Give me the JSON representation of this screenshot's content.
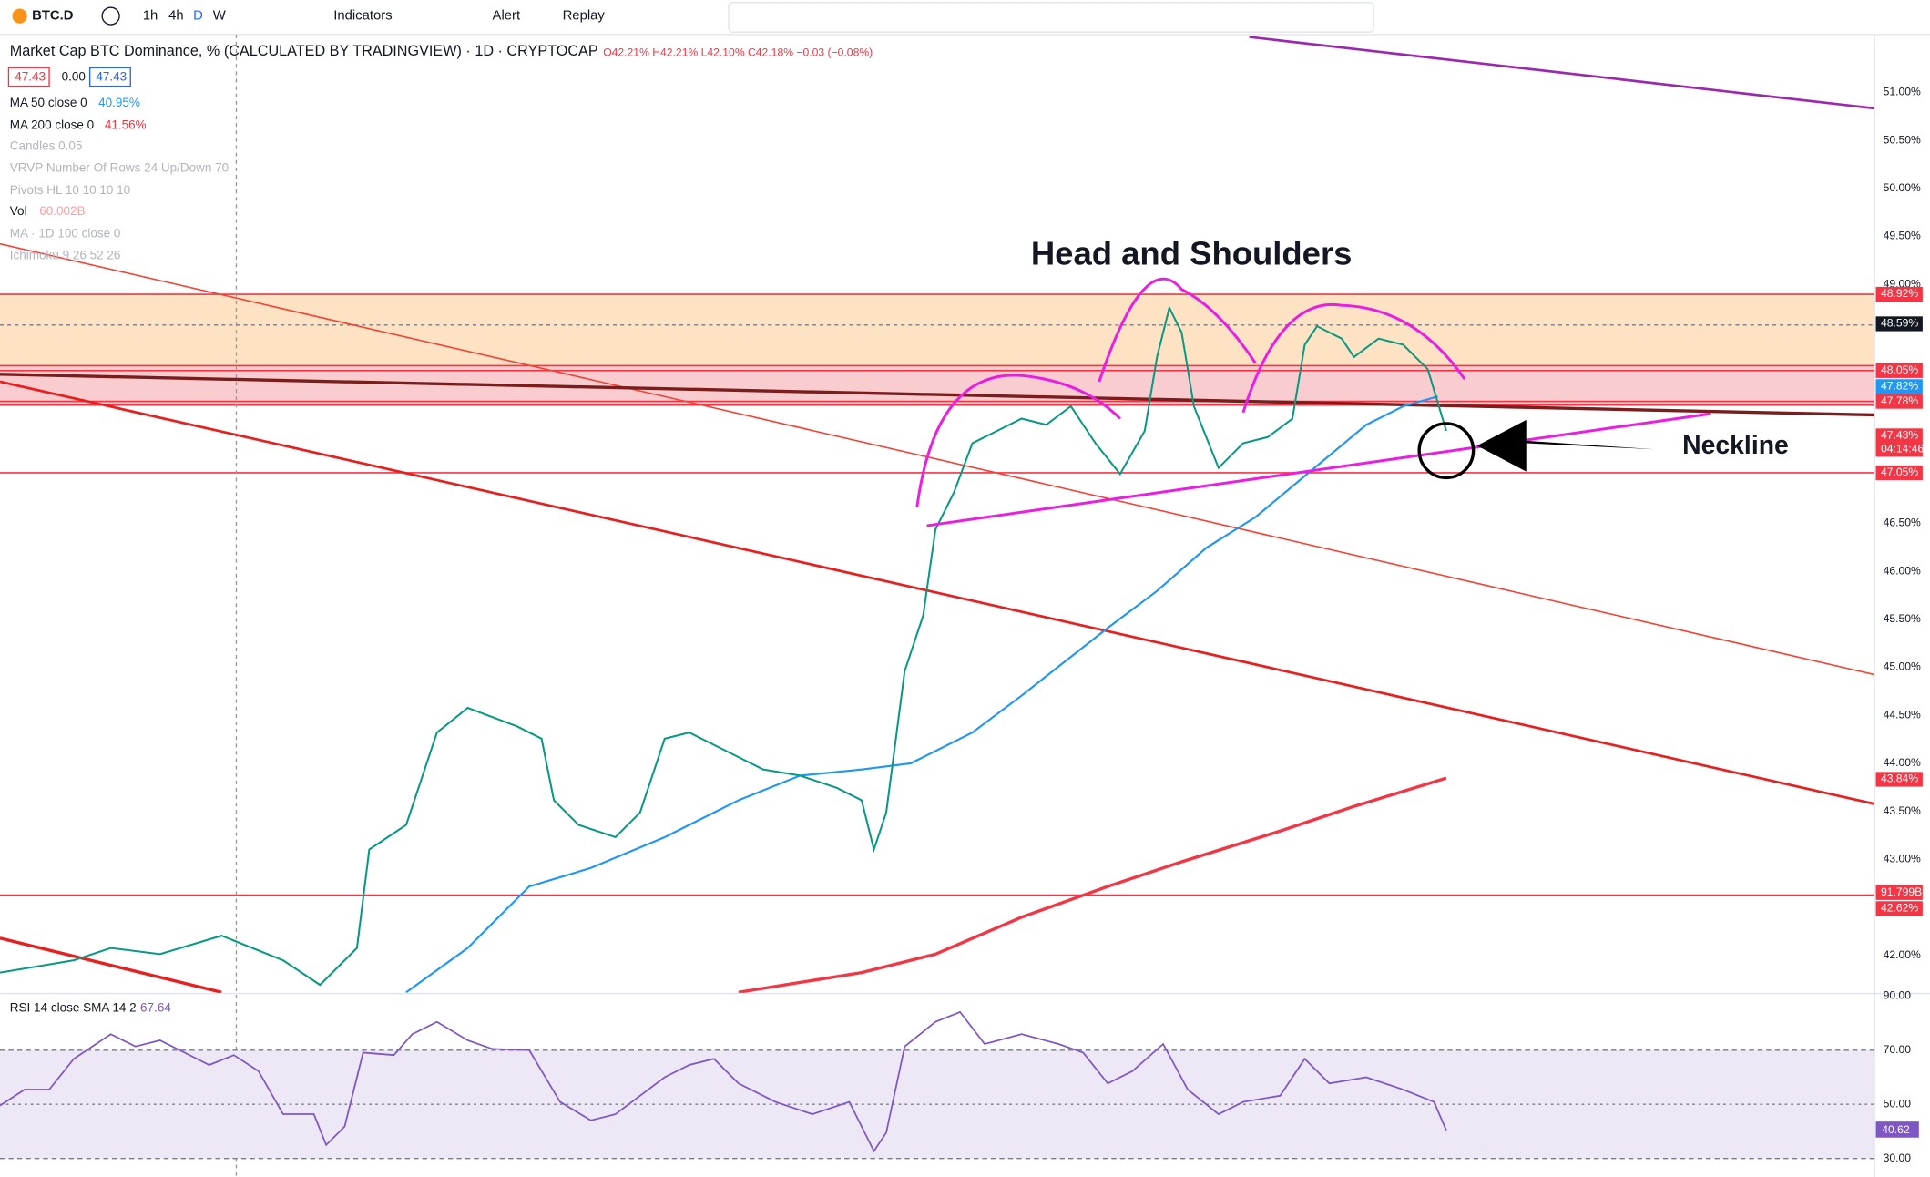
{
  "toolbar": {
    "symbol": "BTC.D",
    "intervals": [
      "1h",
      "4h",
      "D",
      "W"
    ],
    "indicators": "Indicators",
    "alert": "Alert",
    "replay": "Replay"
  },
  "legend": {
    "title": "Market Cap BTC Dominance, % (CALCULATED BY TRADINGVIEW) · 1D · CRYPTOCAP",
    "ohlc": "O42.21% H42.21% L42.10% C42.18% −0.03 (−0.08%)",
    "price_boxes": [
      "47.43",
      "0.00",
      "47.43"
    ],
    "indicators": [
      {
        "name": "MA 50 close 0",
        "value": "40.95%"
      },
      {
        "name": "MA 200 close 0",
        "value": "41.56%"
      },
      {
        "name": "Candles 0.05"
      },
      {
        "name": "VRVP Number Of Rows 24 Up/Down 70"
      },
      {
        "name": "Pivots HL 10 10 10 10"
      },
      {
        "name": "Vol",
        "value": "60.002B"
      },
      {
        "name": "MA · 1D 100 close 0"
      },
      {
        "name": "Ichimoku 9 26 52 26"
      }
    ]
  },
  "price_axis": {
    "labels": [
      "51.00%",
      "50.50%",
      "50.00%",
      "49.50%",
      "49.00%",
      "46.50%",
      "46.00%",
      "45.50%",
      "45.00%",
      "44.50%",
      "44.00%",
      "43.50%",
      "43.00%",
      "42.00%"
    ],
    "badges": [
      "48.92%",
      "48.59%",
      "48.05%",
      "47.82%",
      "47.78%",
      "47.43%",
      "04:14:46",
      "47.05%",
      "43.84%",
      "91.799B",
      "42.62%"
    ]
  },
  "annotations": {
    "title": "Head and Shoulders",
    "neckline": "Neckline"
  },
  "rsi": {
    "label": "RSI 14 close SMA 14 2",
    "value": "67.64",
    "axis": [
      "90.00",
      "70.00",
      "50.00",
      "30.00"
    ],
    "badge": "40.62"
  }
}
